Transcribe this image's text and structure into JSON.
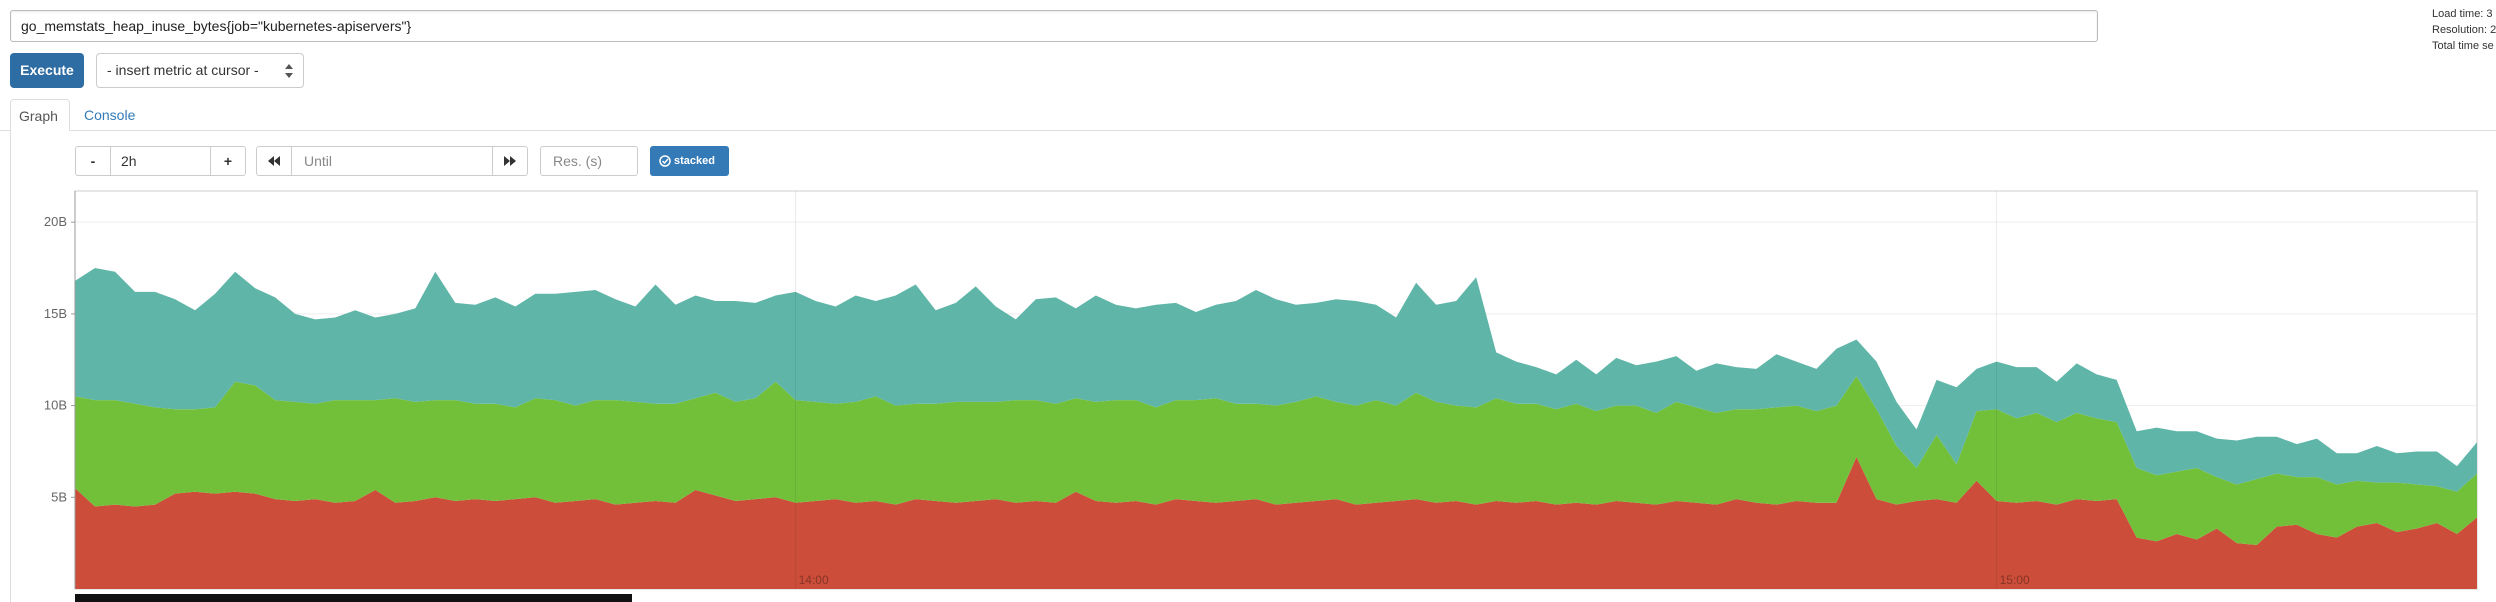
{
  "query": "go_memstats_heap_inuse_bytes{job=\"kubernetes-apiservers\"}",
  "execute": "Execute",
  "metric_select": "- insert metric at cursor -",
  "info": [
    "Load time: 3",
    "Resolution: 2",
    "Total time se"
  ],
  "tabs": [
    "Graph",
    "Console"
  ],
  "controls": {
    "minus": "-",
    "range": "2h",
    "plus": "+",
    "until": "Until",
    "res": "Res. (s)",
    "stacked": "stacked"
  },
  "chart_data": {
    "type": "stacked_area",
    "x": [
      "13:24",
      "13:25",
      "13:26",
      "13:27",
      "13:28",
      "13:29",
      "13:30",
      "13:31",
      "13:32",
      "13:33",
      "13:34",
      "13:35",
      "13:36",
      "13:37",
      "13:38",
      "13:39",
      "13:40",
      "13:41",
      "13:42",
      "13:43",
      "13:44",
      "13:45",
      "13:46",
      "13:47",
      "13:48",
      "13:49",
      "13:50",
      "13:51",
      "13:52",
      "13:53",
      "13:54",
      "13:55",
      "13:56",
      "13:57",
      "13:58",
      "13:59",
      "14:00",
      "14:01",
      "14:02",
      "14:03",
      "14:04",
      "14:05",
      "14:06",
      "14:07",
      "14:08",
      "14:09",
      "14:10",
      "14:11",
      "14:12",
      "14:13",
      "14:14",
      "14:15",
      "14:16",
      "14:17",
      "14:18",
      "14:19",
      "14:20",
      "14:21",
      "14:22",
      "14:23",
      "14:24",
      "14:25",
      "14:26",
      "14:27",
      "14:28",
      "14:29",
      "14:30",
      "14:31",
      "14:32",
      "14:33",
      "14:34",
      "14:35",
      "14:36",
      "14:37",
      "14:38",
      "14:39",
      "14:40",
      "14:41",
      "14:42",
      "14:43",
      "14:44",
      "14:45",
      "14:46",
      "14:47",
      "14:48",
      "14:49",
      "14:50",
      "14:51",
      "14:52",
      "14:53",
      "14:54",
      "14:55",
      "14:56",
      "14:57",
      "14:58",
      "14:59",
      "15:00",
      "15:01",
      "15:02",
      "15:03",
      "15:04",
      "15:05",
      "15:06",
      "15:07",
      "15:08",
      "15:09",
      "15:10",
      "15:11",
      "15:12",
      "15:13",
      "15:14",
      "15:15",
      "15:16",
      "15:17",
      "15:18",
      "15:19",
      "15:20",
      "15:21",
      "15:22",
      "15:23",
      "15:24"
    ],
    "series": [
      {
        "color": "#cc4e3a",
        "values": [
          5.5,
          4.5,
          4.6,
          4.5,
          4.6,
          5.2,
          5.3,
          5.2,
          5.3,
          5.2,
          4.9,
          4.8,
          4.9,
          4.7,
          4.8,
          5.4,
          4.7,
          4.8,
          5.0,
          4.8,
          4.9,
          4.8,
          4.9,
          5.0,
          4.7,
          4.8,
          4.9,
          4.6,
          4.7,
          4.8,
          4.7,
          5.4,
          5.1,
          4.8,
          4.9,
          5.0,
          4.7,
          4.8,
          4.9,
          4.7,
          4.8,
          4.6,
          4.9,
          4.8,
          4.7,
          4.8,
          4.9,
          4.7,
          4.8,
          4.7,
          5.3,
          4.8,
          4.7,
          4.8,
          4.6,
          4.9,
          4.8,
          4.7,
          4.8,
          4.9,
          4.6,
          4.7,
          4.8,
          4.9,
          4.6,
          4.7,
          4.8,
          4.9,
          4.7,
          4.8,
          4.6,
          4.8,
          4.7,
          4.8,
          4.6,
          4.7,
          4.6,
          4.8,
          4.7,
          4.6,
          4.8,
          4.7,
          4.6,
          4.9,
          4.7,
          4.6,
          4.8,
          4.7,
          4.7,
          7.2,
          4.9,
          4.6,
          4.8,
          4.9,
          4.7,
          5.9,
          4.8,
          4.7,
          4.8,
          4.6,
          4.9,
          4.8,
          4.9,
          2.8,
          2.6,
          3.0,
          2.7,
          3.3,
          2.5,
          2.4,
          3.4,
          3.5,
          3.0,
          2.8,
          3.4,
          3.6,
          3.1,
          3.3,
          3.6,
          3.0,
          3.9
        ]
      },
      {
        "color": "#72c03a",
        "values": [
          5.0,
          5.8,
          5.7,
          5.6,
          5.3,
          4.6,
          4.5,
          4.7,
          6.0,
          5.9,
          5.4,
          5.4,
          5.2,
          5.6,
          5.5,
          4.9,
          5.7,
          5.4,
          5.3,
          5.5,
          5.2,
          5.3,
          5.0,
          5.4,
          5.6,
          5.2,
          5.4,
          5.7,
          5.5,
          5.3,
          5.4,
          5.0,
          5.6,
          5.4,
          5.5,
          6.3,
          5.6,
          5.4,
          5.2,
          5.5,
          5.7,
          5.4,
          5.2,
          5.3,
          5.5,
          5.4,
          5.3,
          5.6,
          5.5,
          5.4,
          5.1,
          5.4,
          5.6,
          5.5,
          5.3,
          5.4,
          5.5,
          5.7,
          5.3,
          5.2,
          5.4,
          5.5,
          5.7,
          5.3,
          5.4,
          5.6,
          5.2,
          5.8,
          5.5,
          5.2,
          5.3,
          5.6,
          5.4,
          5.3,
          5.2,
          5.4,
          5.1,
          5.2,
          5.3,
          5.0,
          5.4,
          5.2,
          5.0,
          4.9,
          5.1,
          5.3,
          5.2,
          5.0,
          5.3,
          4.4,
          4.9,
          3.2,
          1.8,
          3.5,
          2.1,
          3.8,
          5.0,
          4.6,
          4.8,
          4.5,
          4.7,
          4.5,
          4.2,
          3.8,
          3.6,
          3.4,
          3.9,
          2.8,
          3.2,
          3.6,
          2.9,
          2.6,
          3.1,
          2.9,
          2.5,
          2.2,
          2.7,
          2.4,
          2.0,
          2.3,
          2.4
        ]
      },
      {
        "color": "#5fb5a8",
        "values": [
          6.3,
          7.2,
          7.0,
          6.1,
          6.3,
          6.0,
          5.4,
          6.2,
          6.0,
          5.3,
          5.6,
          4.8,
          4.6,
          4.5,
          4.9,
          4.5,
          4.6,
          5.1,
          7.0,
          5.3,
          5.4,
          5.8,
          5.5,
          5.7,
          5.8,
          6.2,
          6.0,
          5.5,
          5.2,
          6.5,
          5.4,
          5.6,
          5.0,
          5.5,
          5.2,
          4.7,
          5.9,
          5.5,
          5.3,
          5.8,
          5.2,
          6.0,
          6.5,
          5.1,
          5.4,
          6.3,
          5.2,
          4.4,
          5.5,
          5.8,
          4.9,
          5.8,
          5.2,
          5.0,
          5.6,
          5.3,
          4.8,
          5.1,
          5.6,
          6.2,
          5.8,
          5.3,
          5.1,
          5.6,
          5.7,
          5.2,
          4.8,
          6.0,
          5.3,
          5.7,
          7.1,
          2.5,
          2.3,
          2.0,
          1.9,
          2.4,
          2.0,
          2.6,
          2.2,
          2.8,
          2.5,
          2.0,
          2.7,
          2.3,
          2.2,
          2.9,
          2.4,
          2.3,
          3.1,
          2.0,
          2.6,
          2.4,
          2.1,
          3.0,
          4.2,
          2.3,
          2.6,
          2.8,
          2.5,
          2.2,
          2.7,
          2.4,
          2.3,
          2.0,
          2.6,
          2.2,
          2.0,
          2.1,
          2.4,
          2.3,
          2.0,
          1.8,
          2.1,
          1.7,
          1.5,
          2.0,
          1.6,
          1.8,
          1.9,
          1.4,
          1.7
        ]
      }
    ],
    "ylim": [
      0,
      21.7
    ],
    "yticks": [
      {
        "value": 5,
        "label": "5B"
      },
      {
        "value": 10,
        "label": "10B"
      },
      {
        "value": 15,
        "label": "15B"
      },
      {
        "value": 20,
        "label": "20B"
      }
    ],
    "xticks": [
      "14:00",
      "15:00"
    ],
    "grid": true
  }
}
